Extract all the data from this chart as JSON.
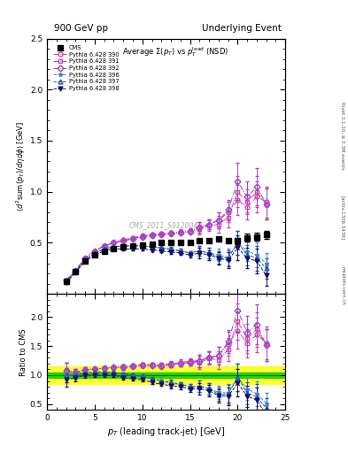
{
  "title_top": "900 GeV pp",
  "title_right": "Underlying Event",
  "plot_title": "Average $\\Sigma(p_T)$ vs $p_T^{\\mathrm{lead}}$ (NSD)",
  "ylabel_main": "$\\langle d^2 \\mathrm{sum}(p_T)/d\\eta d\\phi \\rangle$ [GeV]",
  "ylabel_ratio": "Ratio to CMS",
  "xlabel": "$p_T$ (leading track-jet) [GeV]",
  "watermark": "CMS_2011_S9120041",
  "rivet_label": "Rivet 3.1.10, ≥ 3.3M events",
  "arxiv_label": "[arXiv:1306.3436]",
  "mcplots_label": "mcplots.cern.ch",
  "ylim_main": [
    0.0,
    2.5
  ],
  "ylim_ratio": [
    0.4,
    2.4
  ],
  "yticks_main": [
    0.5,
    1.0,
    1.5,
    2.0,
    2.5
  ],
  "yticks_ratio": [
    0.5,
    1.0,
    1.5,
    2.0
  ],
  "xlim": [
    0,
    25
  ],
  "cms_x": [
    2.0,
    3.0,
    4.0,
    5.0,
    6.0,
    7.0,
    8.0,
    9.0,
    10.0,
    11.0,
    12.0,
    13.0,
    14.0,
    15.0,
    16.0,
    17.0,
    18.0,
    19.0,
    20.0,
    21.0,
    22.0,
    23.0
  ],
  "cms_y": [
    0.12,
    0.22,
    0.32,
    0.38,
    0.42,
    0.44,
    0.46,
    0.47,
    0.48,
    0.49,
    0.5,
    0.5,
    0.5,
    0.5,
    0.52,
    0.52,
    0.54,
    0.52,
    0.52,
    0.55,
    0.56,
    0.58
  ],
  "cms_yerr": [
    0.01,
    0.01,
    0.01,
    0.01,
    0.01,
    0.01,
    0.01,
    0.01,
    0.01,
    0.01,
    0.01,
    0.01,
    0.01,
    0.01,
    0.02,
    0.02,
    0.02,
    0.02,
    0.03,
    0.04,
    0.04,
    0.04
  ],
  "series": [
    {
      "label": "Pythia 6.428 390",
      "color": "#cc44aa",
      "linestyle": "-.",
      "marker": "o",
      "markerfacecolor": "none",
      "x": [
        2.0,
        3.0,
        4.0,
        5.0,
        6.0,
        7.0,
        8.0,
        9.0,
        10.0,
        11.0,
        12.0,
        13.0,
        14.0,
        15.0,
        16.0,
        17.0,
        18.0,
        19.0,
        20.0,
        21.0,
        22.0,
        23.0
      ],
      "y": [
        0.13,
        0.23,
        0.35,
        0.42,
        0.47,
        0.5,
        0.53,
        0.55,
        0.57,
        0.58,
        0.59,
        0.6,
        0.61,
        0.62,
        0.65,
        0.68,
        0.72,
        0.8,
        0.92,
        0.85,
        0.95,
        0.9
      ],
      "yerr": [
        0.01,
        0.01,
        0.01,
        0.01,
        0.01,
        0.01,
        0.01,
        0.01,
        0.01,
        0.01,
        0.01,
        0.02,
        0.02,
        0.02,
        0.05,
        0.05,
        0.08,
        0.1,
        0.15,
        0.12,
        0.15,
        0.15
      ]
    },
    {
      "label": "Pythia 6.428 391",
      "color": "#cc44aa",
      "linestyle": "-.",
      "marker": "s",
      "markerfacecolor": "none",
      "x": [
        2.0,
        3.0,
        4.0,
        5.0,
        6.0,
        7.0,
        8.0,
        9.0,
        10.0,
        11.0,
        12.0,
        13.0,
        14.0,
        15.0,
        16.0,
        17.0,
        18.0,
        19.0,
        20.0,
        21.0,
        22.0,
        23.0
      ],
      "y": [
        0.13,
        0.23,
        0.35,
        0.42,
        0.47,
        0.5,
        0.52,
        0.54,
        0.56,
        0.57,
        0.58,
        0.59,
        0.6,
        0.61,
        0.63,
        0.67,
        0.68,
        0.75,
        1.0,
        0.9,
        1.0,
        0.88
      ],
      "yerr": [
        0.01,
        0.01,
        0.01,
        0.01,
        0.01,
        0.01,
        0.01,
        0.01,
        0.01,
        0.01,
        0.01,
        0.02,
        0.02,
        0.02,
        0.05,
        0.05,
        0.08,
        0.1,
        0.15,
        0.12,
        0.15,
        0.15
      ]
    },
    {
      "label": "Pythia 6.428 392",
      "color": "#9944cc",
      "linestyle": "-.",
      "marker": "D",
      "markerfacecolor": "none",
      "x": [
        2.0,
        3.0,
        4.0,
        5.0,
        6.0,
        7.0,
        8.0,
        9.0,
        10.0,
        11.0,
        12.0,
        13.0,
        14.0,
        15.0,
        16.0,
        17.0,
        18.0,
        19.0,
        20.0,
        21.0,
        22.0,
        23.0
      ],
      "y": [
        0.13,
        0.23,
        0.35,
        0.42,
        0.47,
        0.5,
        0.52,
        0.54,
        0.56,
        0.57,
        0.58,
        0.59,
        0.6,
        0.61,
        0.65,
        0.68,
        0.72,
        0.82,
        1.1,
        0.95,
        1.05,
        0.88
      ],
      "yerr": [
        0.01,
        0.01,
        0.01,
        0.01,
        0.01,
        0.01,
        0.01,
        0.01,
        0.01,
        0.01,
        0.01,
        0.02,
        0.02,
        0.02,
        0.05,
        0.05,
        0.08,
        0.1,
        0.18,
        0.15,
        0.18,
        0.15
      ]
    },
    {
      "label": "Pythia 6.428 396",
      "color": "#4488cc",
      "linestyle": "--",
      "marker": "*",
      "markerfacecolor": "none",
      "x": [
        2.0,
        3.0,
        4.0,
        5.0,
        6.0,
        7.0,
        8.0,
        9.0,
        10.0,
        11.0,
        12.0,
        13.0,
        14.0,
        15.0,
        16.0,
        17.0,
        18.0,
        19.0,
        20.0,
        21.0,
        22.0,
        23.0
      ],
      "y": [
        0.12,
        0.22,
        0.33,
        0.4,
        0.44,
        0.46,
        0.47,
        0.47,
        0.47,
        0.46,
        0.45,
        0.43,
        0.42,
        0.4,
        0.42,
        0.4,
        0.38,
        0.36,
        0.5,
        0.42,
        0.38,
        0.3
      ],
      "yerr": [
        0.01,
        0.01,
        0.01,
        0.01,
        0.01,
        0.01,
        0.01,
        0.01,
        0.01,
        0.01,
        0.01,
        0.02,
        0.02,
        0.02,
        0.05,
        0.05,
        0.06,
        0.08,
        0.12,
        0.1,
        0.12,
        0.1
      ]
    },
    {
      "label": "Pythia 6.428 397",
      "color": "#2255aa",
      "linestyle": "--",
      "marker": "^",
      "markerfacecolor": "none",
      "x": [
        2.0,
        3.0,
        4.0,
        5.0,
        6.0,
        7.0,
        8.0,
        9.0,
        10.0,
        11.0,
        12.0,
        13.0,
        14.0,
        15.0,
        16.0,
        17.0,
        18.0,
        19.0,
        20.0,
        21.0,
        22.0,
        23.0
      ],
      "y": [
        0.12,
        0.22,
        0.33,
        0.4,
        0.44,
        0.46,
        0.47,
        0.47,
        0.47,
        0.46,
        0.45,
        0.44,
        0.42,
        0.4,
        0.42,
        0.4,
        0.36,
        0.35,
        0.5,
        0.38,
        0.35,
        0.25
      ],
      "yerr": [
        0.01,
        0.01,
        0.01,
        0.01,
        0.01,
        0.01,
        0.01,
        0.01,
        0.01,
        0.01,
        0.01,
        0.02,
        0.02,
        0.02,
        0.05,
        0.05,
        0.06,
        0.08,
        0.12,
        0.1,
        0.12,
        0.1
      ]
    },
    {
      "label": "Pythia 6.428 398",
      "color": "#111166",
      "linestyle": "--",
      "marker": "v",
      "markerfacecolor": "#111166",
      "x": [
        2.0,
        3.0,
        4.0,
        5.0,
        6.0,
        7.0,
        8.0,
        9.0,
        10.0,
        11.0,
        12.0,
        13.0,
        14.0,
        15.0,
        16.0,
        17.0,
        18.0,
        19.0,
        20.0,
        21.0,
        22.0,
        23.0
      ],
      "y": [
        0.11,
        0.21,
        0.32,
        0.38,
        0.42,
        0.44,
        0.44,
        0.44,
        0.44,
        0.43,
        0.42,
        0.41,
        0.4,
        0.38,
        0.4,
        0.38,
        0.35,
        0.33,
        0.45,
        0.35,
        0.32,
        0.18
      ],
      "yerr": [
        0.01,
        0.01,
        0.01,
        0.01,
        0.01,
        0.01,
        0.01,
        0.01,
        0.01,
        0.01,
        0.01,
        0.02,
        0.02,
        0.02,
        0.05,
        0.05,
        0.06,
        0.08,
        0.12,
        0.1,
        0.12,
        0.1
      ]
    }
  ],
  "green_band_half": 0.05,
  "yellow_band_half": 0.15,
  "background_color": "#ffffff",
  "panel_bg": "#ffffff"
}
